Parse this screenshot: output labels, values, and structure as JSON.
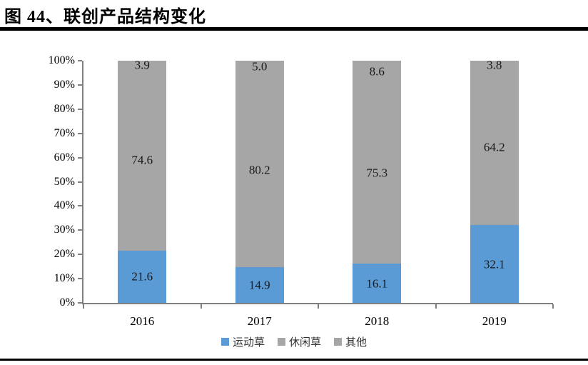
{
  "figure": {
    "title": "图 44、联创产品结构变化"
  },
  "chart_data": {
    "type": "bar",
    "stacked": true,
    "orientation": "vertical",
    "title": "联创产品结构变化",
    "categories": [
      "2016",
      "2017",
      "2018",
      "2019"
    ],
    "series": [
      {
        "name": "运动草",
        "color": "#5B9BD5",
        "values": [
          21.6,
          14.9,
          16.1,
          32.1
        ]
      },
      {
        "name": "休闲草",
        "color": "#A6A6A6",
        "values": [
          74.6,
          80.2,
          75.3,
          64.2
        ]
      },
      {
        "name": "其他",
        "color": "#A6A6A6",
        "values": [
          3.9,
          5.0,
          8.6,
          3.8
        ]
      }
    ],
    "value_label_decimals": 1,
    "y_axis": {
      "min": 0,
      "max": 100,
      "ticks": [
        "0%",
        "10%",
        "20%",
        "30%",
        "40%",
        "50%",
        "60%",
        "70%",
        "80%",
        "90%",
        "100%"
      ],
      "grid": false
    },
    "legend": {
      "position": "bottom",
      "entries": [
        "运动草",
        "休闲草",
        "其他"
      ]
    },
    "colors": {
      "axis_line": "#808080",
      "value_label_text": "#1A1A1A",
      "title_rule": "#000000"
    }
  }
}
